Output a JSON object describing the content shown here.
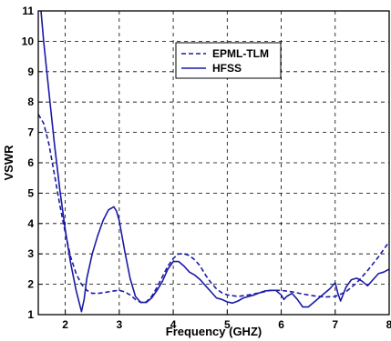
{
  "chart_data": {
    "type": "line",
    "xlabel": "Frequency (GHZ)",
    "ylabel": "VSWR",
    "xlim": [
      1.5,
      8
    ],
    "ylim": [
      1,
      11
    ],
    "xticks": [
      2,
      3,
      4,
      5,
      6,
      7,
      8
    ],
    "yticks": [
      1,
      2,
      3,
      4,
      5,
      6,
      7,
      8,
      9,
      10,
      11
    ],
    "grid": true,
    "legend_position": "top-center-right",
    "series": [
      {
        "name": "EPML-TLM",
        "style": "dashed",
        "color": "#1a1aa6",
        "x": [
          1.5,
          1.6,
          1.7,
          1.8,
          1.9,
          2.0,
          2.1,
          2.2,
          2.3,
          2.4,
          2.5,
          2.6,
          2.7,
          2.8,
          2.9,
          3.0,
          3.1,
          3.2,
          3.3,
          3.4,
          3.5,
          3.6,
          3.7,
          3.8,
          3.9,
          4.0,
          4.1,
          4.2,
          4.3,
          4.4,
          4.5,
          4.6,
          4.7,
          4.8,
          4.9,
          5.0,
          5.2,
          5.4,
          5.6,
          5.8,
          6.0,
          6.2,
          6.4,
          6.6,
          6.8,
          7.0,
          7.2,
          7.4,
          7.6,
          7.8,
          8.0
        ],
        "y": [
          7.6,
          7.3,
          6.6,
          5.6,
          4.6,
          3.7,
          2.9,
          2.35,
          2.0,
          1.8,
          1.7,
          1.7,
          1.72,
          1.75,
          1.78,
          1.8,
          1.75,
          1.65,
          1.5,
          1.4,
          1.42,
          1.6,
          1.9,
          2.25,
          2.6,
          2.85,
          3.0,
          3.0,
          2.95,
          2.8,
          2.6,
          2.3,
          2.05,
          1.85,
          1.72,
          1.65,
          1.6,
          1.65,
          1.72,
          1.8,
          1.8,
          1.75,
          1.68,
          1.62,
          1.58,
          1.6,
          1.75,
          2.05,
          2.45,
          2.9,
          3.4
        ]
      },
      {
        "name": "HFSS",
        "style": "solid",
        "color": "#1a1aa6",
        "x": [
          1.55,
          1.6,
          1.7,
          1.8,
          1.9,
          2.0,
          2.1,
          2.2,
          2.3,
          2.35,
          2.4,
          2.5,
          2.6,
          2.7,
          2.8,
          2.9,
          2.95,
          3.0,
          3.1,
          3.2,
          3.3,
          3.4,
          3.5,
          3.6,
          3.7,
          3.8,
          3.9,
          4.0,
          4.1,
          4.2,
          4.3,
          4.4,
          4.5,
          4.6,
          4.7,
          4.8,
          4.9,
          5.0,
          5.1,
          5.2,
          5.3,
          5.4,
          5.5,
          5.6,
          5.7,
          5.8,
          5.9,
          6.0,
          6.05,
          6.1,
          6.2,
          6.3,
          6.4,
          6.5,
          6.6,
          6.7,
          6.8,
          6.9,
          7.0,
          7.05,
          7.1,
          7.2,
          7.3,
          7.4,
          7.5,
          7.6,
          7.7,
          7.8,
          7.9,
          8.0
        ],
        "y": [
          11.0,
          10.0,
          8.3,
          6.6,
          5.1,
          3.8,
          2.7,
          1.8,
          1.1,
          1.5,
          2.2,
          3.0,
          3.6,
          4.1,
          4.45,
          4.55,
          4.4,
          4.1,
          3.1,
          2.2,
          1.6,
          1.4,
          1.4,
          1.55,
          1.8,
          2.1,
          2.5,
          2.75,
          2.75,
          2.6,
          2.4,
          2.3,
          2.15,
          1.95,
          1.75,
          1.55,
          1.5,
          1.42,
          1.38,
          1.45,
          1.55,
          1.6,
          1.65,
          1.72,
          1.78,
          1.8,
          1.8,
          1.65,
          1.5,
          1.6,
          1.7,
          1.5,
          1.25,
          1.25,
          1.4,
          1.55,
          1.7,
          1.85,
          2.05,
          1.7,
          1.45,
          1.9,
          2.15,
          2.2,
          2.1,
          1.95,
          2.15,
          2.35,
          2.4,
          2.5
        ]
      }
    ]
  },
  "legend": {
    "items": [
      {
        "label": "EPML-TLM",
        "style": "dashed"
      },
      {
        "label": "HFSS",
        "style": "solid"
      }
    ]
  },
  "axes": {
    "xlabel": "Frequency (GHZ)",
    "ylabel": "VSWR"
  }
}
